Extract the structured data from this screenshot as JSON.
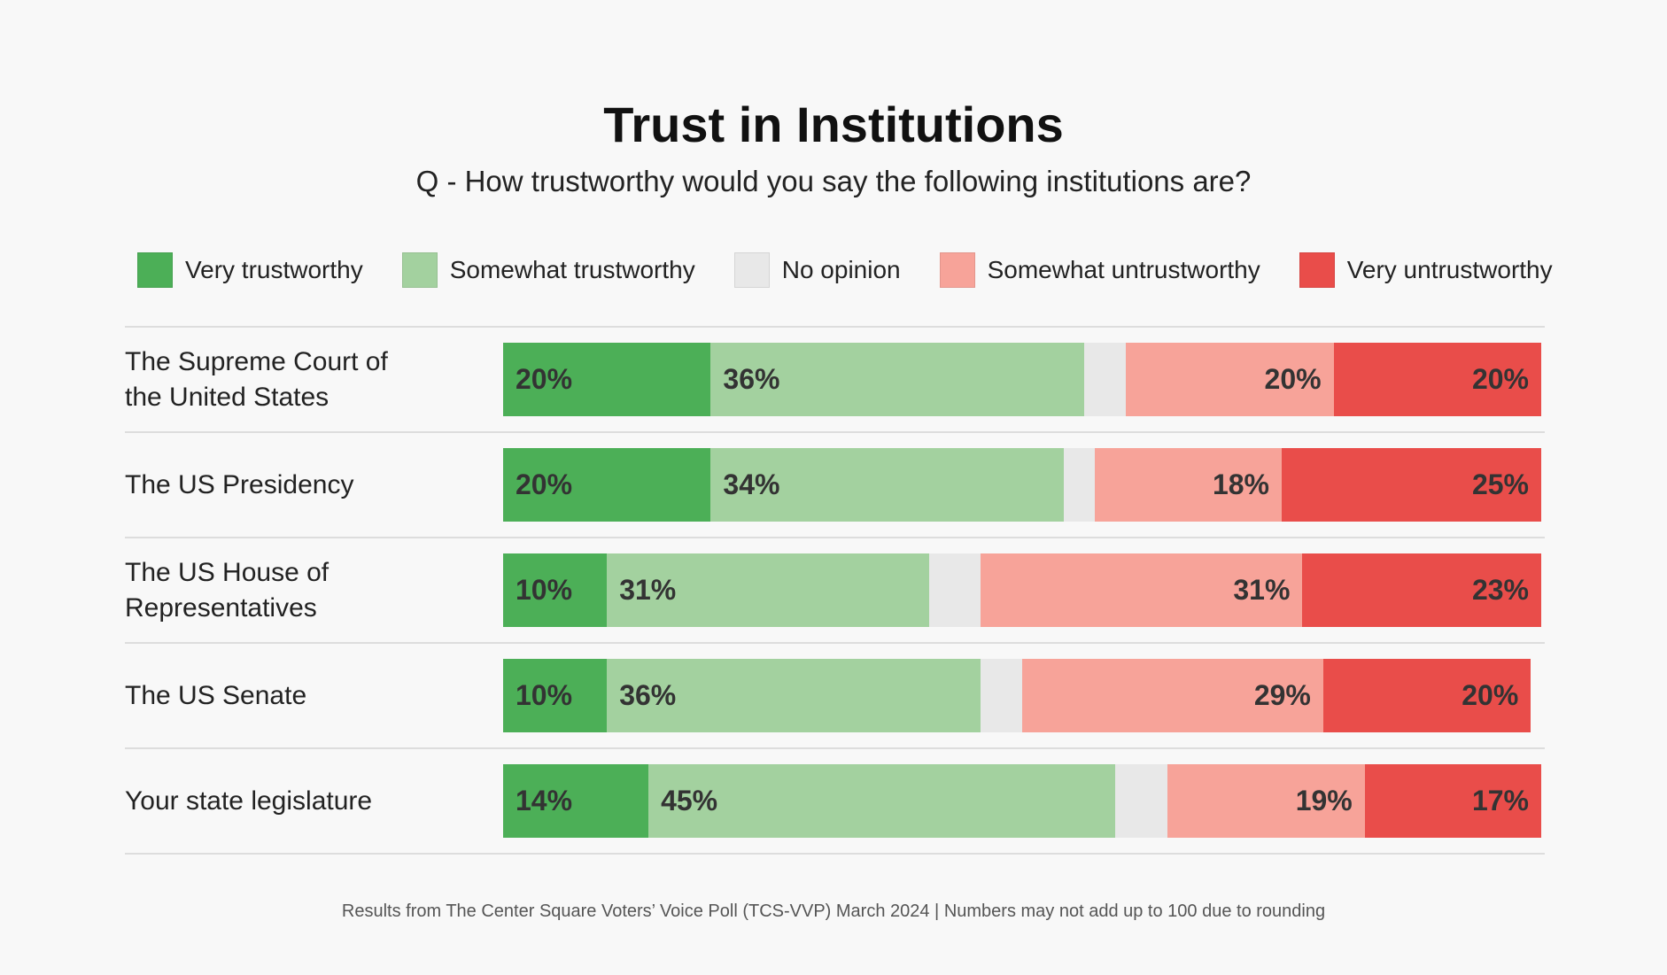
{
  "chart_data": {
    "type": "bar",
    "orientation": "horizontal",
    "stacked": true,
    "title": "Trust in Institutions",
    "subtitle": "Q -  How trustworthy would you say the following institutions are?",
    "legend_position": "top",
    "categories": [
      "The Supreme Court of the United States",
      "The US Presidency",
      "The US House of Representatives",
      "The US Senate",
      "Your state legislature"
    ],
    "series": [
      {
        "name": "Very trustworthy",
        "color": "#4caf57",
        "values": [
          20,
          20,
          10,
          10,
          14
        ],
        "labeled": true,
        "label_align": "left"
      },
      {
        "name": "Somewhat trustworthy",
        "color": "#a3d19f",
        "values": [
          36,
          34,
          31,
          36,
          45
        ],
        "labeled": true,
        "label_align": "left"
      },
      {
        "name": "No opinion",
        "color": "#e8e8e8",
        "values": [
          4,
          3,
          5,
          4,
          5
        ],
        "labeled": false
      },
      {
        "name": "Somewhat untrustworthy",
        "color": "#f7a399",
        "values": [
          20,
          18,
          31,
          29,
          19
        ],
        "labeled": true,
        "label_align": "right"
      },
      {
        "name": "Very untrustworthy",
        "color": "#e94d4a",
        "values": [
          20,
          25,
          23,
          20,
          17
        ],
        "labeled": true,
        "label_align": "right"
      }
    ],
    "xlim": [
      0,
      100
    ],
    "grid": false
  },
  "footer": "Results from The Center Square Voters’ Voice Poll (TCS-VVP) March 2024 | Numbers may not add up to 100 due to rounding"
}
